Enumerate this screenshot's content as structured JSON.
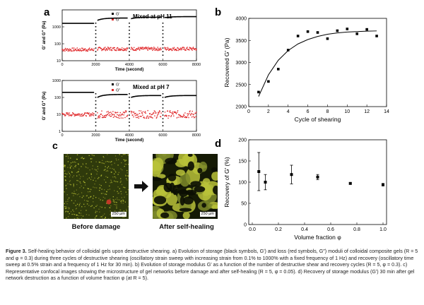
{
  "figure": {
    "caption_bold": "Figure 3.",
    "caption_text": " Self-healing behavior of colloidal gels upon destructive shearing. a) Evolution of storage (black symbols, G′) and loss (red symbols, G″) moduli of colloidal composite gels (R = 5 and φ = 0.3) during three cycles of destructive shearing (oscillatory strain sweep with increasing strain from 0.1% to 1000% with a fixed frequency of 1 Hz) and recovery (oscillatory time sweep at 0.5% strain and a frequency of 1 Hz for 30 min). b) Evolution of storage modulus G′ as a function of the number of destructive shear and recovery cycles (R = 5, φ = 0.3). c) Representative confocal images showing the microstructure of gel networks before damage and after self-healing (R = 5, φ = 0.05). d) Recovery of storage modulus (G′) 30 min after gel network destruction as a function of volume fraction φ (at R = 5)."
  },
  "panel_labels": {
    "a": "a",
    "b": "b",
    "c": "c",
    "d": "d"
  },
  "panel_c": {
    "before_label": "Before damage",
    "after_label": "After self-healing",
    "scalebar": "250 µm",
    "colors": {
      "background": "#2f3a0c",
      "particles": "#c8d23a",
      "red": "#d23a2a"
    }
  },
  "chart_data": [
    {
      "id": "a-top",
      "type": "scatter",
      "title": "Mixed at pH 11",
      "xlabel": "Time (second)",
      "ylabel": "G' and G\" (Pa)",
      "xlim": [
        0,
        8000
      ],
      "ylog": true,
      "ylim": [
        10,
        10000
      ],
      "xticks": [
        0,
        2000,
        4000,
        6000,
        8000
      ],
      "yticks": [
        {
          "v": 10,
          "label": "10"
        },
        {
          "v": 100,
          "label": "100"
        },
        {
          "v": 1000,
          "label": "1000"
        }
      ],
      "legend": [
        "G'",
        "G\""
      ],
      "series": [
        {
          "name": "G'",
          "color": "#000000",
          "segments": [
            {
              "x": [
                0,
                1900
              ],
              "y": [
                1600,
                1600
              ]
            },
            {
              "x": [
                2100,
                3900
              ],
              "y": [
                2400,
                3300
              ]
            },
            {
              "x": [
                4100,
                5900
              ],
              "y": [
                3000,
                3700
              ]
            },
            {
              "x": [
                6100,
                8000
              ],
              "y": [
                3500,
                4000
              ]
            }
          ]
        },
        {
          "name": "G\"",
          "color": "#e0282a",
          "segments": [
            {
              "x": [
                0,
                1900
              ],
              "y": [
                45,
                45
              ]
            },
            {
              "x": [
                2100,
                3900
              ],
              "y": [
                50,
                50
              ]
            },
            {
              "x": [
                4100,
                5900
              ],
              "y": [
                50,
                50
              ]
            },
            {
              "x": [
                6100,
                8000
              ],
              "y": [
                50,
                50
              ]
            }
          ]
        }
      ]
    },
    {
      "id": "a-bottom",
      "type": "scatter",
      "title": "Mixed at pH 7",
      "xlabel": "Time (second)",
      "ylabel": "G' and G\" (Pa)",
      "xlim": [
        0,
        8000
      ],
      "ylog": true,
      "ylim": [
        1,
        1000
      ],
      "xticks": [
        0,
        2000,
        4000,
        6000,
        8000
      ],
      "yticks": [
        {
          "v": 1,
          "label": "1"
        },
        {
          "v": 10,
          "label": "10"
        },
        {
          "v": 100,
          "label": "100"
        },
        {
          "v": 1000,
          "label": "1000"
        }
      ],
      "legend": [
        "G'",
        "G\""
      ],
      "series": [
        {
          "name": "G'",
          "color": "#000000",
          "segments": [
            {
              "x": [
                0,
                1900
              ],
              "y": [
                200,
                200
              ]
            },
            {
              "x": [
                2100,
                3900
              ],
              "y": [
                100,
                150
              ]
            },
            {
              "x": [
                4100,
                5900
              ],
              "y": [
                100,
                130
              ]
            },
            {
              "x": [
                6100,
                8000
              ],
              "y": [
                100,
                130
              ]
            }
          ]
        },
        {
          "name": "G\"",
          "color": "#e0282a",
          "segments": [
            {
              "x": [
                0,
                1900
              ],
              "y": [
                10,
                10
              ]
            },
            {
              "x": [
                2100,
                3900
              ],
              "y": [
                10,
                10
              ]
            },
            {
              "x": [
                4100,
                5900
              ],
              "y": [
                10,
                10
              ]
            },
            {
              "x": [
                6100,
                8000
              ],
              "y": [
                10,
                10
              ]
            }
          ]
        }
      ]
    },
    {
      "id": "b",
      "type": "scatter",
      "xlabel": "Cycle of shearing",
      "ylabel": "Recovered G' (Pa)",
      "xlim": [
        0,
        14
      ],
      "ylim": [
        2000,
        4000
      ],
      "xticks": [
        0,
        2,
        4,
        6,
        8,
        10,
        12,
        14
      ],
      "yticks": [
        2000,
        2500,
        3000,
        3500,
        4000
      ],
      "points": [
        {
          "x": 1,
          "y": 2330
        },
        {
          "x": 2,
          "y": 2570
        },
        {
          "x": 3,
          "y": 2850
        },
        {
          "x": 4,
          "y": 3280
        },
        {
          "x": 5,
          "y": 3600
        },
        {
          "x": 6,
          "y": 3700
        },
        {
          "x": 7,
          "y": 3680
        },
        {
          "x": 8,
          "y": 3540
        },
        {
          "x": 9,
          "y": 3720
        },
        {
          "x": 10,
          "y": 3760
        },
        {
          "x": 11,
          "y": 3650
        },
        {
          "x": 12,
          "y": 3750
        },
        {
          "x": 13,
          "y": 3600
        }
      ],
      "fit": {
        "x": [
          1,
          2,
          3,
          4,
          5,
          6,
          7,
          8,
          9,
          10,
          11,
          12,
          13
        ],
        "y": [
          2230,
          2720,
          3050,
          3270,
          3420,
          3520,
          3590,
          3640,
          3670,
          3690,
          3700,
          3710,
          3715
        ]
      }
    },
    {
      "id": "d",
      "type": "scatter",
      "xlabel": "Volume fraction φ",
      "ylabel": "Recovery of G' (%)",
      "xlim": [
        0.0,
        1.0
      ],
      "ylim": [
        0,
        200
      ],
      "xticks": [
        0.0,
        0.2,
        0.4,
        0.6,
        0.8,
        1.0
      ],
      "yticks": [
        0,
        50,
        100,
        150,
        200
      ],
      "points": [
        {
          "x": 0.05,
          "y": 125,
          "err": 45
        },
        {
          "x": 0.1,
          "y": 100,
          "err": 18
        },
        {
          "x": 0.3,
          "y": 118,
          "err": 22
        },
        {
          "x": 0.5,
          "y": 112,
          "err": 6
        },
        {
          "x": 0.75,
          "y": 97,
          "err": 2
        },
        {
          "x": 1.0,
          "y": 94,
          "err": 3
        }
      ]
    }
  ]
}
